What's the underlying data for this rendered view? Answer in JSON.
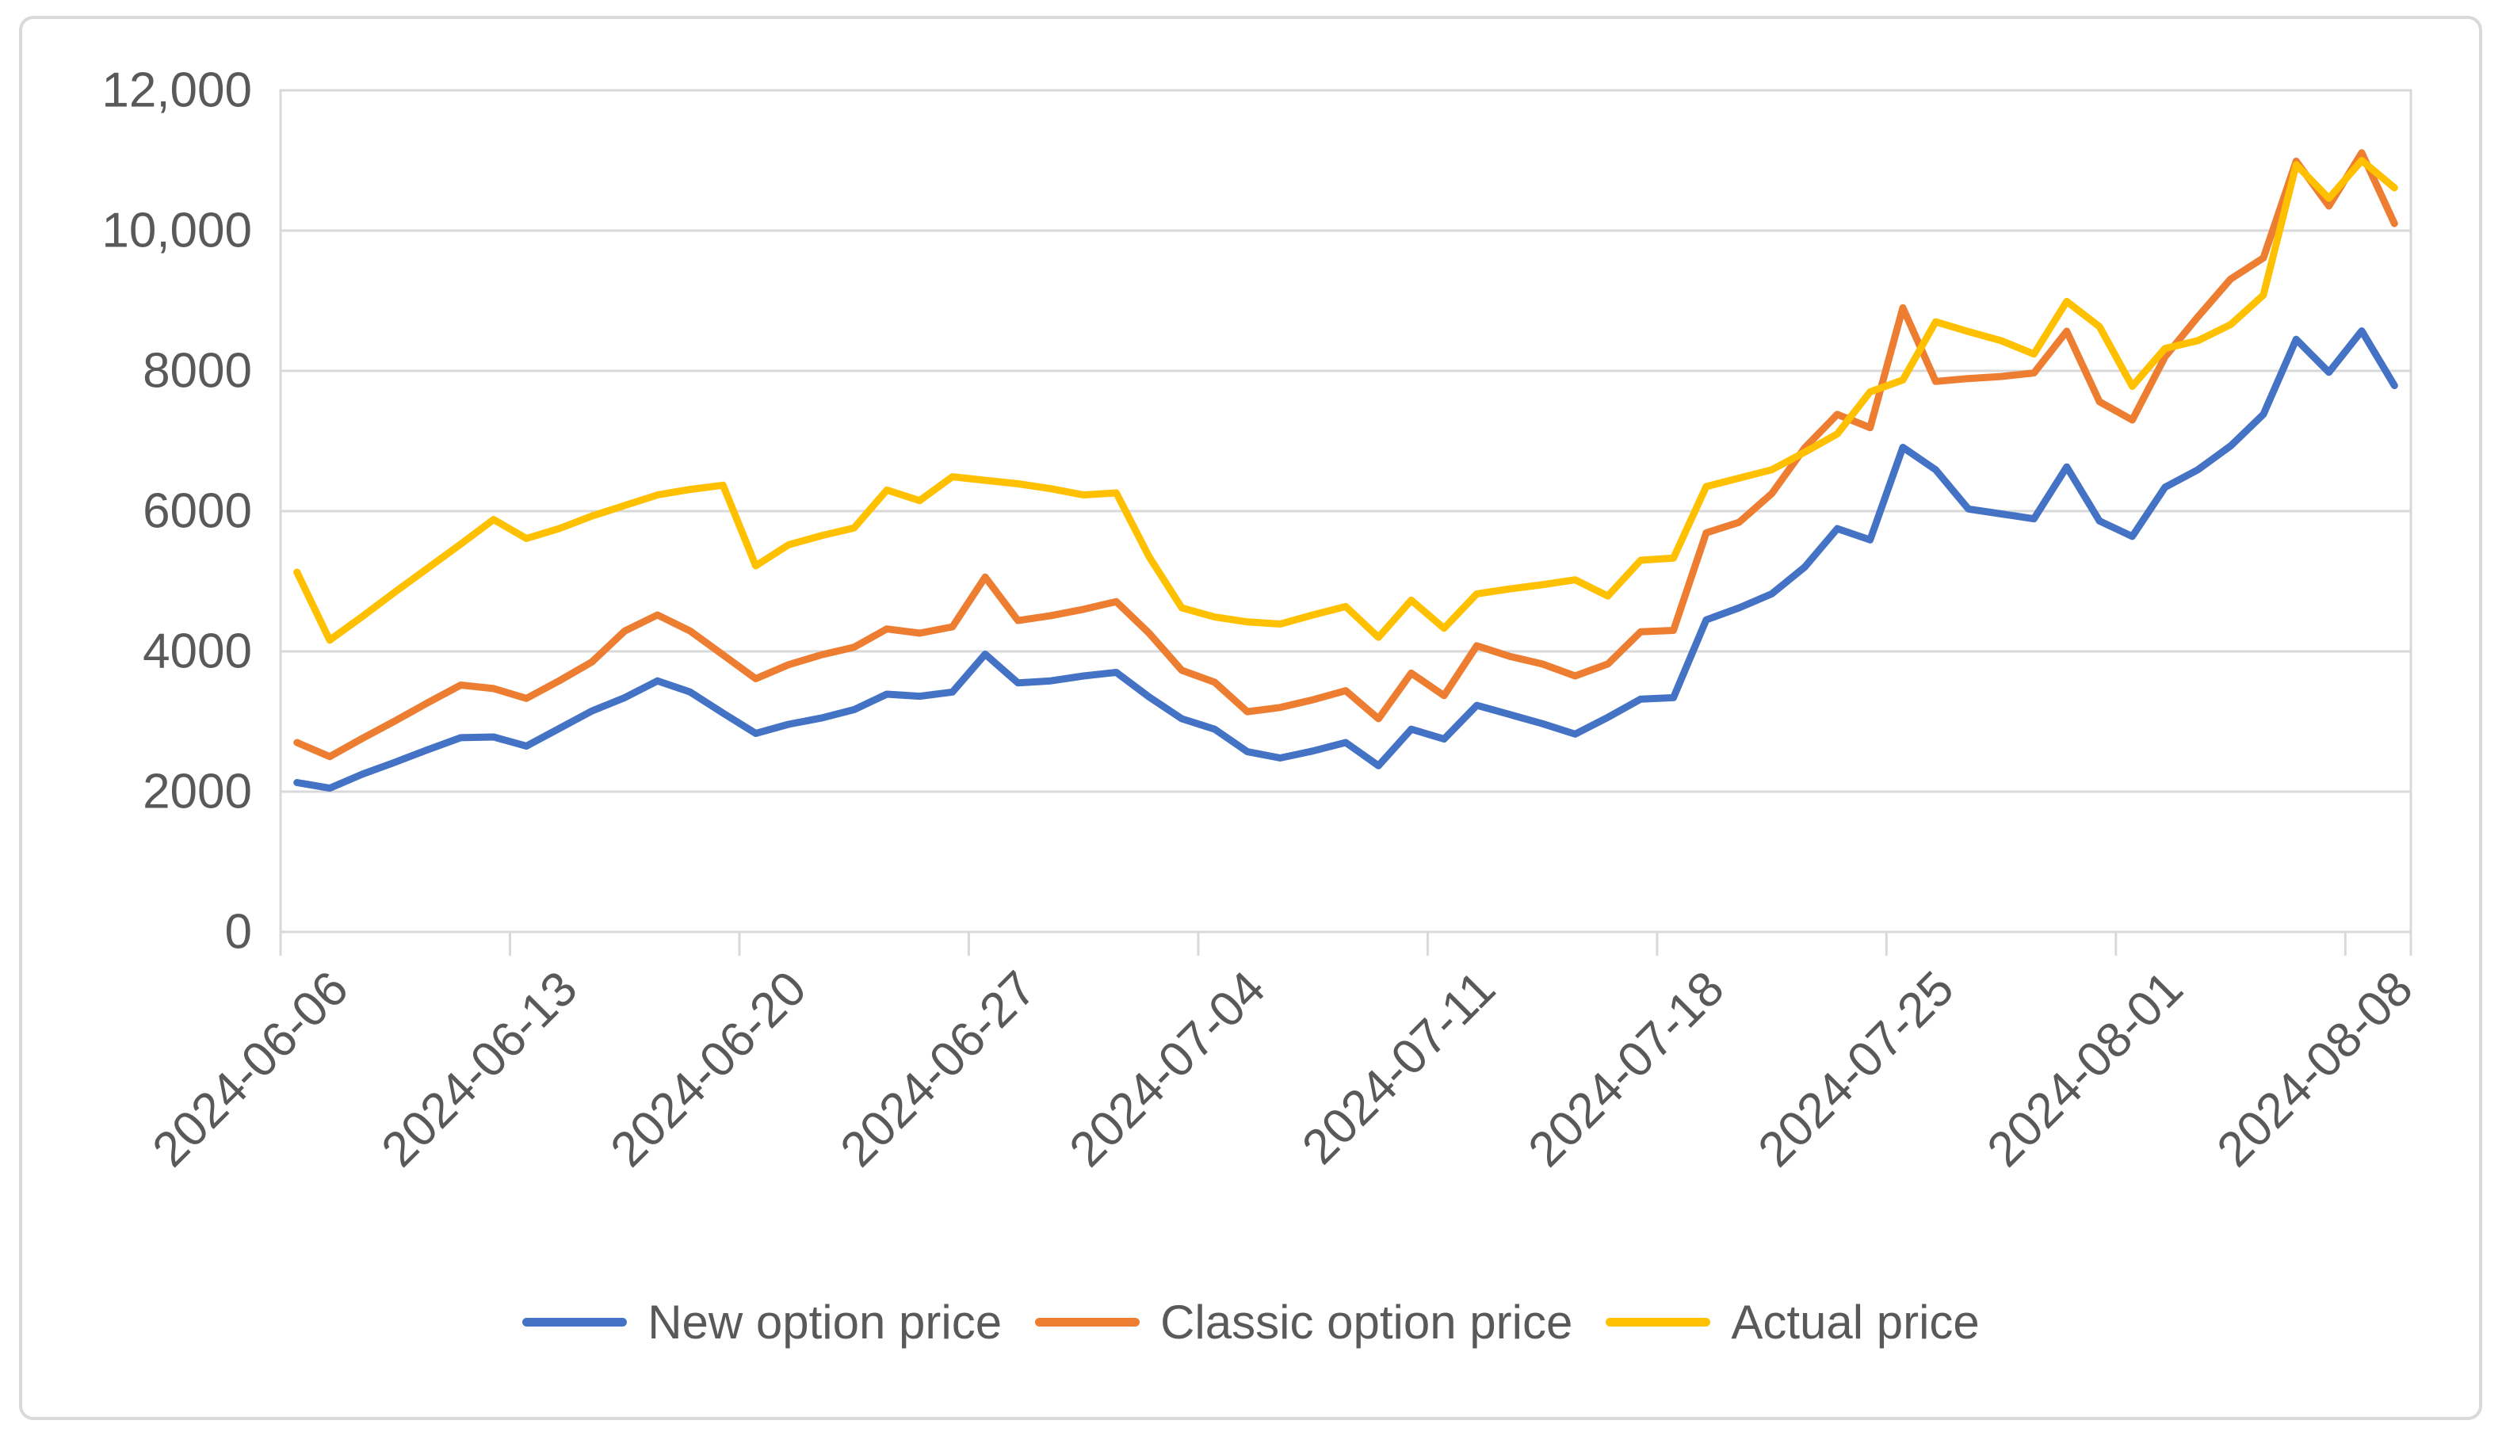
{
  "chart_data": {
    "type": "line",
    "title": "",
    "xlabel": "",
    "ylabel": "",
    "ylim": [
      0,
      12000
    ],
    "grid": "horizontal",
    "legend_position": "bottom",
    "axis_text_color": "#595959",
    "grid_color": "#D9D9D9",
    "frame_color": "#D9D9D9",
    "y_ticks": [
      {
        "value": 0,
        "label": "0"
      },
      {
        "value": 2000,
        "label": "2000"
      },
      {
        "value": 4000,
        "label": "4000"
      },
      {
        "value": 6000,
        "label": "6000"
      },
      {
        "value": 8000,
        "label": "8000"
      },
      {
        "value": 10000,
        "label": "10,000"
      },
      {
        "value": 12000,
        "label": "12,000"
      }
    ],
    "x_tick_indices": [
      0,
      7,
      14,
      21,
      28,
      35,
      42,
      49,
      56,
      63
    ],
    "x_tick_labels": [
      "2024-06-06",
      "2024-06-13",
      "2024-06-20",
      "2024-06-27",
      "2024-07-04",
      "2024-07-11",
      "2024-07-18",
      "2024-07-25",
      "2024-08-01",
      "2024-08-08"
    ],
    "x_dates": [
      "2024-06-06",
      "2024-06-07",
      "2024-06-08",
      "2024-06-09",
      "2024-06-10",
      "2024-06-11",
      "2024-06-12",
      "2024-06-13",
      "2024-06-14",
      "2024-06-15",
      "2024-06-16",
      "2024-06-17",
      "2024-06-18",
      "2024-06-19",
      "2024-06-20",
      "2024-06-21",
      "2024-06-22",
      "2024-06-23",
      "2024-06-24",
      "2024-06-25",
      "2024-06-26",
      "2024-06-27",
      "2024-06-28",
      "2024-06-29",
      "2024-06-30",
      "2024-07-01",
      "2024-07-02",
      "2024-07-03",
      "2024-07-04",
      "2024-07-05",
      "2024-07-06",
      "2024-07-07",
      "2024-07-08",
      "2024-07-09",
      "2024-07-10",
      "2024-07-11",
      "2024-07-12",
      "2024-07-13",
      "2024-07-14",
      "2024-07-15",
      "2024-07-16",
      "2024-07-17",
      "2024-07-18",
      "2024-07-19",
      "2024-07-20",
      "2024-07-21",
      "2024-07-22",
      "2024-07-23",
      "2024-07-24",
      "2024-07-25",
      "2024-07-26",
      "2024-07-27",
      "2024-07-28",
      "2024-07-29",
      "2024-07-30",
      "2024-07-31",
      "2024-08-01",
      "2024-08-02",
      "2024-08-03",
      "2024-08-04",
      "2024-08-05",
      "2024-08-06",
      "2024-08-07",
      "2024-08-08",
      "2024-08-09"
    ],
    "series": [
      {
        "name": "New option price",
        "color": "#4472C4",
        "values": [
          2130,
          2050,
          2250,
          2420,
          2600,
          2770,
          2780,
          2650,
          2900,
          3150,
          3340,
          3580,
          3420,
          3120,
          2830,
          2960,
          3050,
          3170,
          3390,
          3360,
          3420,
          3960,
          3550,
          3580,
          3650,
          3700,
          3350,
          3040,
          2890,
          2570,
          2480,
          2580,
          2700,
          2370,
          2890,
          2750,
          3230,
          3100,
          2970,
          2820,
          3060,
          3320,
          3340,
          4450,
          4620,
          4820,
          5200,
          5750,
          5590,
          6910,
          6590,
          6030,
          5960,
          5890,
          6630,
          5860,
          5640,
          6340,
          6590,
          6930,
          7380,
          8450,
          7980,
          8570,
          7790
        ]
      },
      {
        "name": "Classic option price",
        "color": "#ED7D31",
        "values": [
          2700,
          2500,
          2760,
          3010,
          3270,
          3520,
          3470,
          3330,
          3580,
          3850,
          4290,
          4520,
          4290,
          3950,
          3610,
          3810,
          3950,
          4060,
          4320,
          4260,
          4350,
          5060,
          4440,
          4510,
          4600,
          4710,
          4260,
          3730,
          3560,
          3140,
          3200,
          3310,
          3440,
          3040,
          3690,
          3370,
          4080,
          3930,
          3820,
          3650,
          3820,
          4280,
          4300,
          5690,
          5840,
          6250,
          6900,
          7380,
          7190,
          8900,
          7850,
          7890,
          7920,
          7970,
          8565,
          7560,
          7300,
          8200,
          8770,
          9310,
          9610,
          10990,
          10350,
          11110,
          10100
        ]
      },
      {
        "name": "Actual price",
        "color": "#FFC000",
        "values": [
          5130,
          4160,
          4500,
          4850,
          5190,
          5530,
          5880,
          5610,
          5750,
          5930,
          6080,
          6230,
          6310,
          6370,
          5220,
          5520,
          5650,
          5760,
          6300,
          6150,
          6490,
          6440,
          6390,
          6320,
          6230,
          6260,
          5350,
          4620,
          4490,
          4420,
          4390,
          4520,
          4640,
          4200,
          4730,
          4330,
          4820,
          4890,
          4950,
          5020,
          4790,
          5300,
          5330,
          6350,
          6470,
          6590,
          6840,
          7100,
          7700,
          7870,
          8700,
          8560,
          8430,
          8240,
          8990,
          8630,
          7780,
          8320,
          8430,
          8660,
          9080,
          10940,
          10460,
          11000,
          10610
        ]
      }
    ]
  }
}
